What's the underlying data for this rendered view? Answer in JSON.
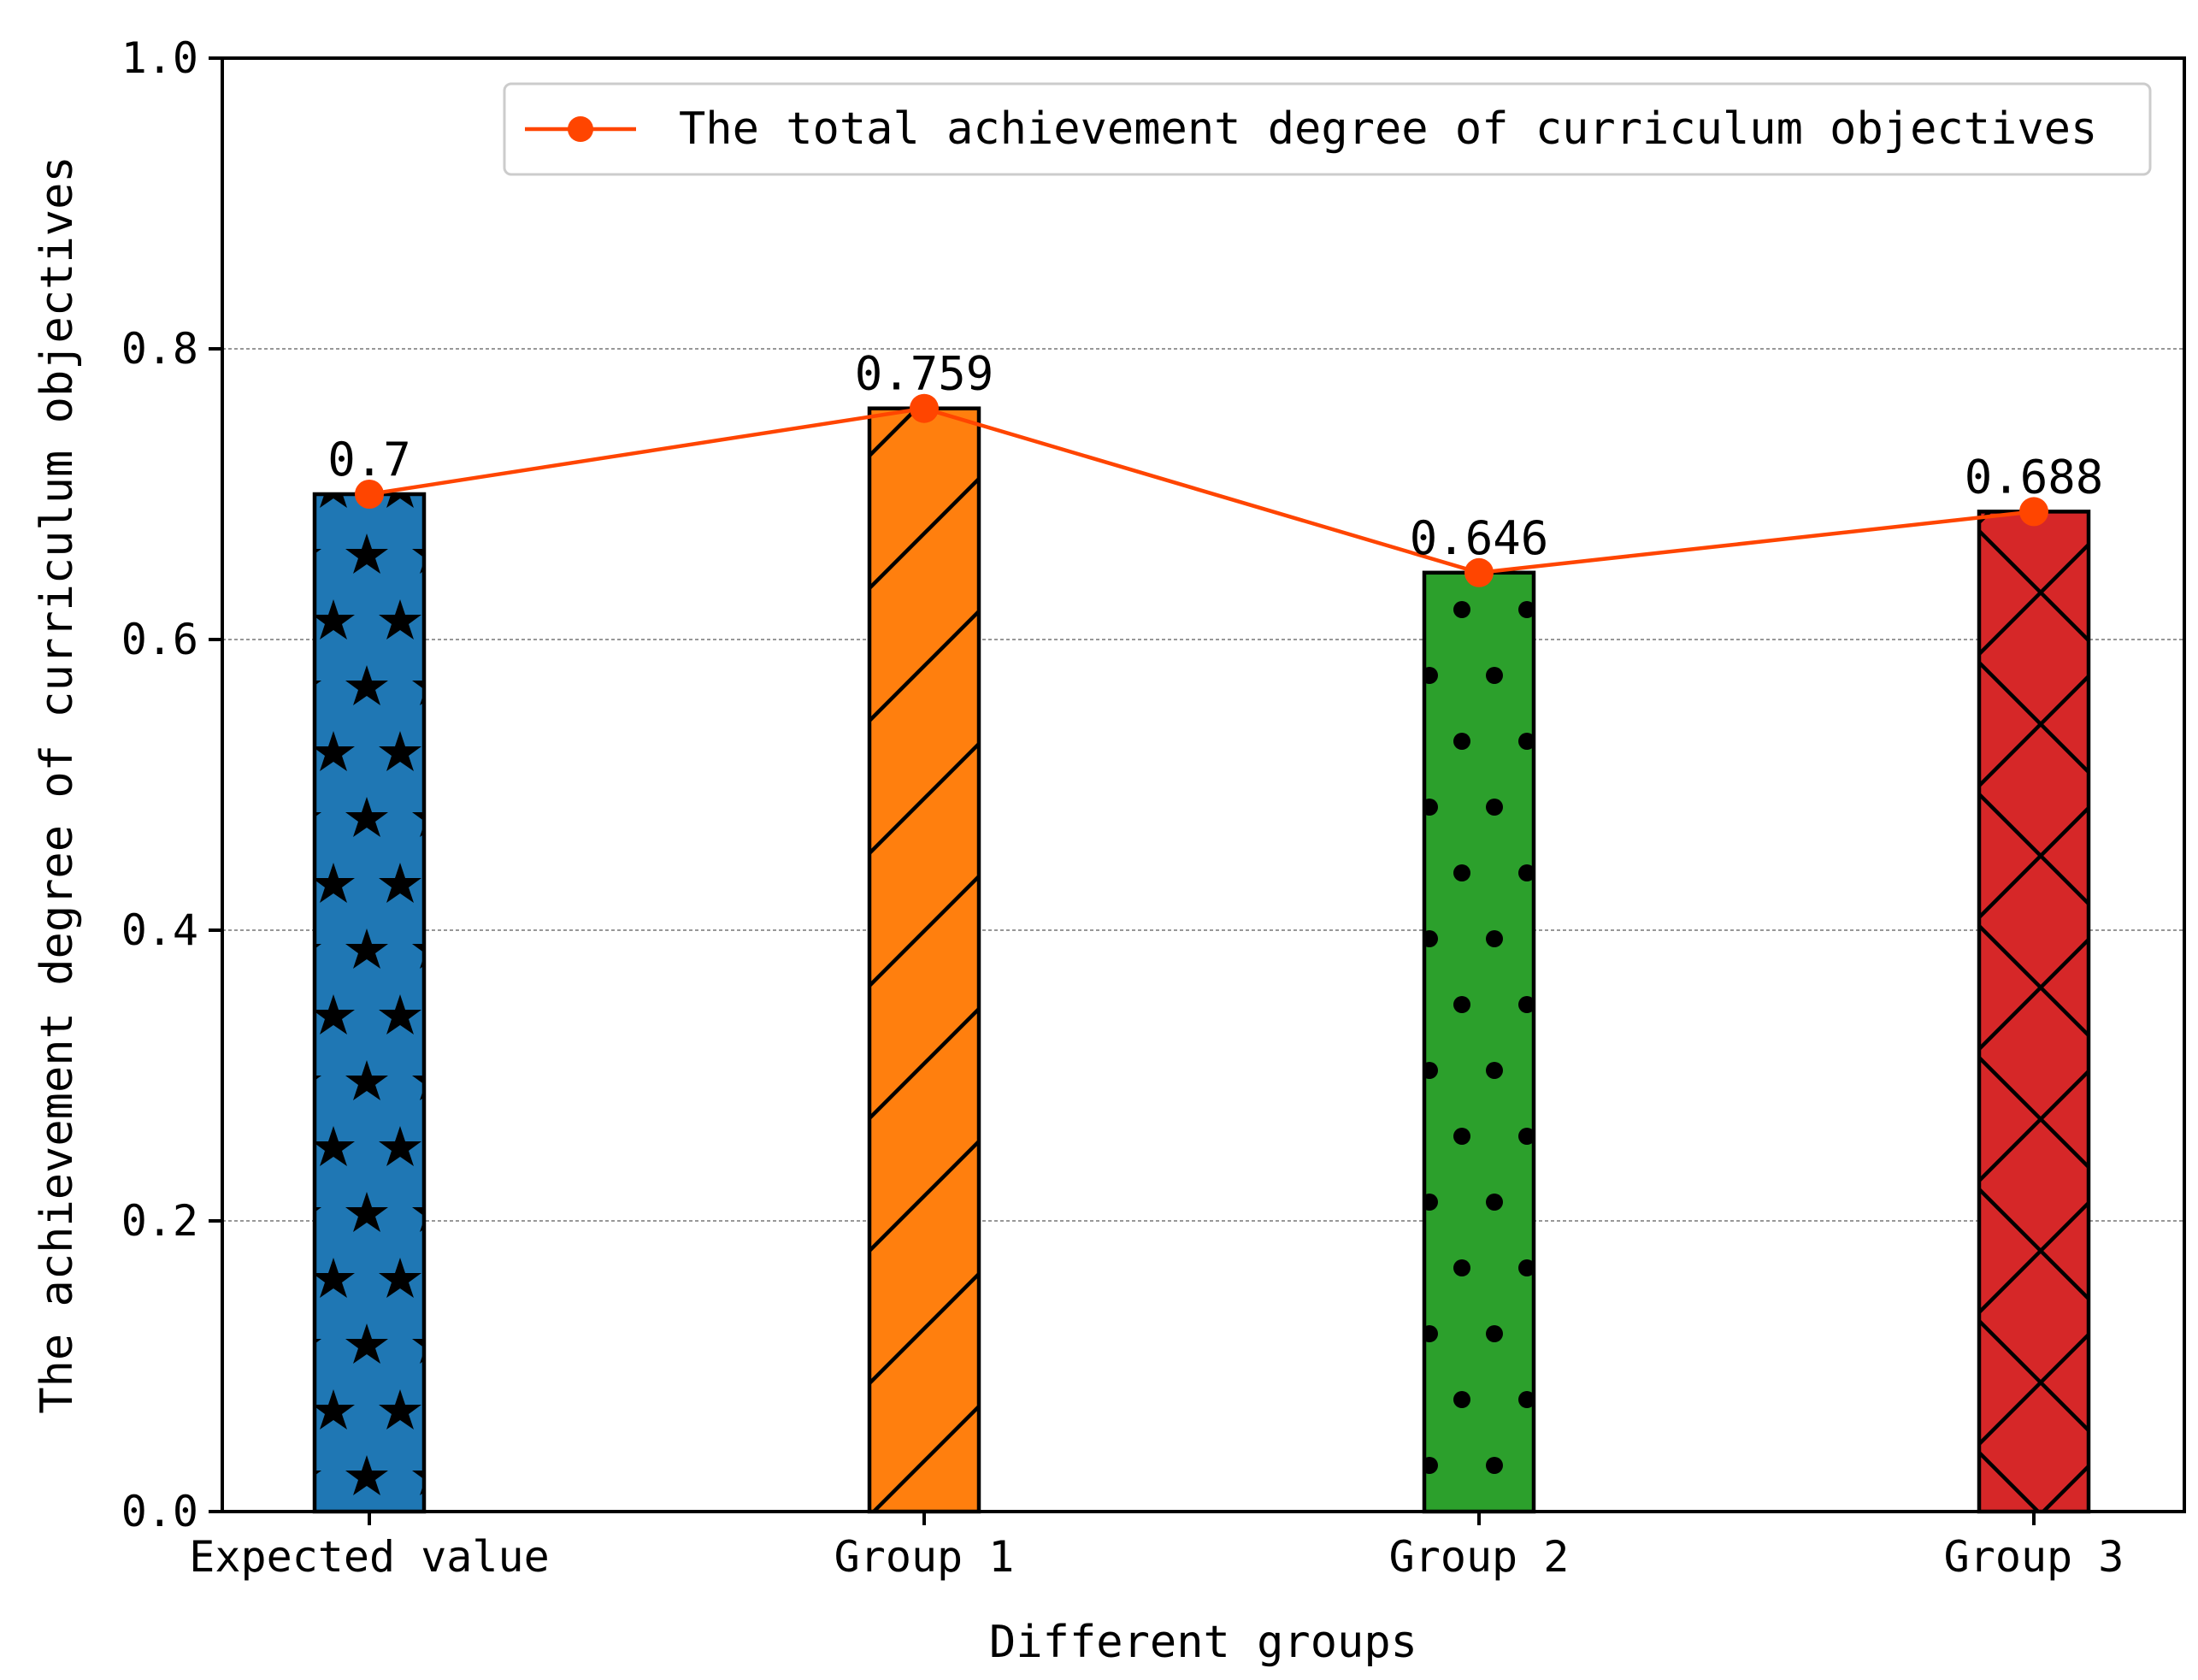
{
  "chart_data": {
    "type": "bar",
    "title": "",
    "xlabel": "Different groups",
    "ylabel": "The achievement degree of curriculum objectives",
    "ylim": [
      0,
      1.0
    ],
    "yticks": [
      0.0,
      0.2,
      0.4,
      0.6,
      0.8,
      1.0
    ],
    "ytick_labels": [
      "0.0",
      "0.2",
      "0.4",
      "0.6",
      "0.8",
      "1.0"
    ],
    "categories": [
      "Expected value",
      "Group 1",
      "Group 2",
      "Group 3"
    ],
    "values": [
      0.7,
      0.759,
      0.646,
      0.688
    ],
    "data_labels": [
      "0.7",
      "0.759",
      "0.646",
      "0.688"
    ],
    "bar_colors": [
      "#1f77b4",
      "#ff7f0e",
      "#2ca02c",
      "#d62728"
    ],
    "bar_hatches": [
      "stars",
      "diagonal",
      "dots",
      "crosshatch"
    ],
    "grid": "horizontal-dashed",
    "line_series": {
      "name": "The total achievement degree of curriculum objectives",
      "values": [
        0.7,
        0.759,
        0.646,
        0.688
      ],
      "color": "#ff4500",
      "marker": "circle"
    },
    "legend": {
      "position": "top-right",
      "entries": [
        "The total achievement degree of curriculum objectives"
      ]
    }
  }
}
